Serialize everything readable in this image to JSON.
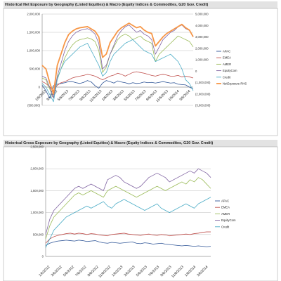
{
  "chart_data": [
    {
      "type": "line",
      "title": "Historical Net Exposure by Geography (Listed Equities) & Macro (Equity Indices & Commodites, G20 Gov. Credit)",
      "x_tick_labels": [
        "1/6/2013",
        "3/6/2013",
        "5/6/2013",
        "7/6/2013",
        "9/6/2013",
        "11/6/2013",
        "1/6/2013",
        "3/6/2013",
        "5/6/2013",
        "7/6/2013",
        "9/6/2013",
        "11/6/2013",
        "1/6/2014",
        "3/6/2014"
      ],
      "y_left_ticks": [
        "2,000,000",
        "1,500,000",
        "1,000,000",
        "500,000",
        "0",
        "(500,000)"
      ],
      "y_right_ticks": [
        "5,000,000",
        "4,000,000",
        "3,000,000",
        "2,000,000",
        "1,000,000",
        "0",
        "(1,000,000)",
        "(2,000,000)",
        "(3,000,000)"
      ],
      "ylim_left": [
        -500000,
        2000000
      ],
      "ylim_right": [
        -3000000,
        5000000
      ],
      "grid": true,
      "legend_position": "right",
      "series": [
        {
          "name": "APAC",
          "color": "#2f5597",
          "axis": "left",
          "values": [
            50000,
            -100000,
            -300000,
            40000,
            80000,
            100000,
            120000,
            150000,
            150000,
            120000,
            100000,
            130000,
            180000,
            140000,
            40000,
            -30000,
            110000,
            180000,
            150000,
            110000,
            170000,
            140000,
            120000,
            90000,
            120000,
            100000,
            110000,
            140000,
            120000,
            130000,
            110000,
            130000,
            150000,
            130000,
            110000,
            120000,
            80000,
            70000,
            60000,
            0,
            -50000
          ]
        },
        {
          "name": "EMEA",
          "color": "#c0504d",
          "axis": "left",
          "values": [
            150000,
            100000,
            0,
            -100000,
            50000,
            120000,
            150000,
            200000,
            250000,
            280000,
            300000,
            320000,
            350000,
            330000,
            300000,
            250000,
            200000,
            250000,
            300000,
            330000,
            380000,
            350000,
            300000,
            350000,
            400000,
            420000,
            400000,
            380000,
            350000,
            320000,
            300000,
            330000,
            350000,
            330000,
            300000,
            300000,
            320000,
            280000,
            300000,
            280000,
            250000
          ]
        },
        {
          "name": "AMER",
          "color": "#9bbb59",
          "axis": "left",
          "values": [
            250000,
            200000,
            -50000,
            -300000,
            250000,
            500000,
            800000,
            1000000,
            1150000,
            1250000,
            1300000,
            1320000,
            1350000,
            1320000,
            1250000,
            1000000,
            400000,
            550000,
            900000,
            1100000,
            1300000,
            1400000,
            1450000,
            1400000,
            1300000,
            1350000,
            1400000,
            1300000,
            1250000,
            1200000,
            700000,
            900000,
            1000000,
            1100000,
            1200000,
            1300000,
            1400000,
            1350000,
            1300000,
            1250000,
            1100000
          ]
        },
        {
          "name": "EquityCom",
          "color": "#8064a2",
          "axis": "left",
          "values": [
            300000,
            250000,
            0,
            -300000,
            300000,
            650000,
            1000000,
            1250000,
            1400000,
            1500000,
            1550000,
            1580000,
            1600000,
            1550000,
            1450000,
            1200000,
            500000,
            600000,
            900000,
            1150000,
            1400000,
            1550000,
            1650000,
            1700000,
            1600000,
            1500000,
            1550000,
            1450000,
            1400000,
            1300000,
            900000,
            1100000,
            1300000,
            1400000,
            1500000,
            1550000,
            1650000,
            1700000,
            1600000,
            1550000,
            1400000
          ]
        },
        {
          "name": "Credit",
          "color": "#4bacc6",
          "axis": "left",
          "values": [
            100000,
            0,
            -200000,
            -400000,
            200000,
            500000,
            700000,
            800000,
            900000,
            1000000,
            1100000,
            1150000,
            1200000,
            1000000,
            800000,
            600000,
            300000,
            400000,
            700000,
            900000,
            1000000,
            1100000,
            1200000,
            1250000,
            1300000,
            1200000,
            1100000,
            1000000,
            950000,
            900000,
            700000,
            750000,
            800000,
            850000,
            900000,
            800000,
            700000,
            500000,
            200000,
            100000,
            -100000
          ]
        },
        {
          "name": "NetExposure RHS",
          "color": "#f79646",
          "axis": "right",
          "values": [
            500000,
            200000,
            -1000000,
            -2000000,
            500000,
            1500000,
            2500000,
            3200000,
            3500000,
            3700000,
            3800000,
            3850000,
            3900000,
            3700000,
            3500000,
            3000000,
            1200000,
            1500000,
            2500000,
            3000000,
            3500000,
            3800000,
            4000000,
            4200000,
            4000000,
            3800000,
            3900000,
            3600000,
            3400000,
            3300000,
            2200000,
            2600000,
            3000000,
            3300000,
            3500000,
            3700000,
            3900000,
            4100000,
            3800000,
            3600000,
            3000000
          ]
        }
      ]
    },
    {
      "type": "line",
      "title": "Historical Gross Exposure by Geography (Listed Equities) & Macro (Equity Indices & Commodites, G20 Gov. Credit)",
      "x_tick_labels": [
        "1/6/2012",
        "3/6/2012",
        "5/6/2012",
        "7/6/2012",
        "9/6/2012",
        "11/6/2012",
        "1/6/2013",
        "3/6/2013",
        "5/6/2013",
        "7/6/2013",
        "9/6/2013",
        "11/6/2013",
        "1/6/2014",
        "3/6/2014"
      ],
      "y_left_ticks": [
        "2,500,000",
        "2,000,000",
        "1,500,000",
        "1,000,000",
        "500,000",
        "0"
      ],
      "ylim_left": [
        0,
        2500000
      ],
      "grid": true,
      "legend_position": "right",
      "series": [
        {
          "name": "APAC",
          "color": "#2f5597",
          "axis": "left",
          "values": [
            250000,
            300000,
            330000,
            350000,
            360000,
            370000,
            360000,
            350000,
            370000,
            360000,
            340000,
            350000,
            360000,
            330000,
            310000,
            300000,
            320000,
            310000,
            300000,
            310000,
            320000,
            330000,
            300000,
            290000,
            310000,
            300000,
            280000,
            290000,
            300000,
            280000,
            270000,
            260000,
            250000,
            240000,
            250000,
            240000,
            230000,
            240000,
            230000,
            220000,
            230000
          ]
        },
        {
          "name": "EMEA",
          "color": "#c0504d",
          "axis": "left",
          "values": [
            300000,
            400000,
            450000,
            480000,
            500000,
            520000,
            530000,
            510000,
            530000,
            520000,
            500000,
            520000,
            510000,
            490000,
            480000,
            470000,
            500000,
            510000,
            520000,
            530000,
            510000,
            500000,
            490000,
            480000,
            500000,
            510000,
            490000,
            480000,
            500000,
            490000,
            470000,
            480000,
            490000,
            500000,
            510000,
            500000,
            520000,
            530000,
            550000,
            560000,
            560000
          ]
        },
        {
          "name": "AMER",
          "color": "#9bbb59",
          "axis": "left",
          "values": [
            400000,
            700000,
            900000,
            1000000,
            1100000,
            1200000,
            1300000,
            1400000,
            1450000,
            1400000,
            1450000,
            1500000,
            1450000,
            1400000,
            1350000,
            1500000,
            1550000,
            1600000,
            1550000,
            1500000,
            1450000,
            1400000,
            1350000,
            1400000,
            1450000,
            1500000,
            1550000,
            1600000,
            1550000,
            1500000,
            1550000,
            1600000,
            1650000,
            1700000,
            1650000,
            1750000,
            1700000,
            1800000,
            1750000,
            1650000,
            1550000
          ]
        },
        {
          "name": "EquityCom",
          "color": "#8064a2",
          "axis": "left",
          "values": [
            500000,
            850000,
            1050000,
            1150000,
            1250000,
            1350000,
            1450000,
            1550000,
            1600000,
            1550000,
            1600000,
            1650000,
            1600000,
            1550000,
            1500000,
            1750000,
            1800000,
            1850000,
            1800000,
            1700000,
            1650000,
            1600000,
            1550000,
            1600000,
            1700000,
            1800000,
            1850000,
            1900000,
            1850000,
            1800000,
            1700000,
            1750000,
            1800000,
            1850000,
            1900000,
            1950000,
            1900000,
            2000000,
            1950000,
            1900000,
            1800000
          ]
        },
        {
          "name": "Credit",
          "color": "#4bacc6",
          "axis": "left",
          "values": [
            200000,
            400000,
            600000,
            700000,
            800000,
            900000,
            950000,
            1000000,
            1050000,
            1100000,
            1150000,
            1100000,
            1150000,
            1200000,
            1250000,
            1150000,
            1100000,
            1200000,
            1250000,
            1300000,
            1250000,
            1200000,
            1150000,
            1100000,
            1050000,
            1100000,
            1150000,
            1200000,
            1100000,
            1050000,
            1000000,
            1050000,
            1100000,
            1150000,
            1200000,
            1150000,
            1100000,
            1200000,
            1250000,
            1300000,
            1350000
          ]
        }
      ]
    }
  ]
}
